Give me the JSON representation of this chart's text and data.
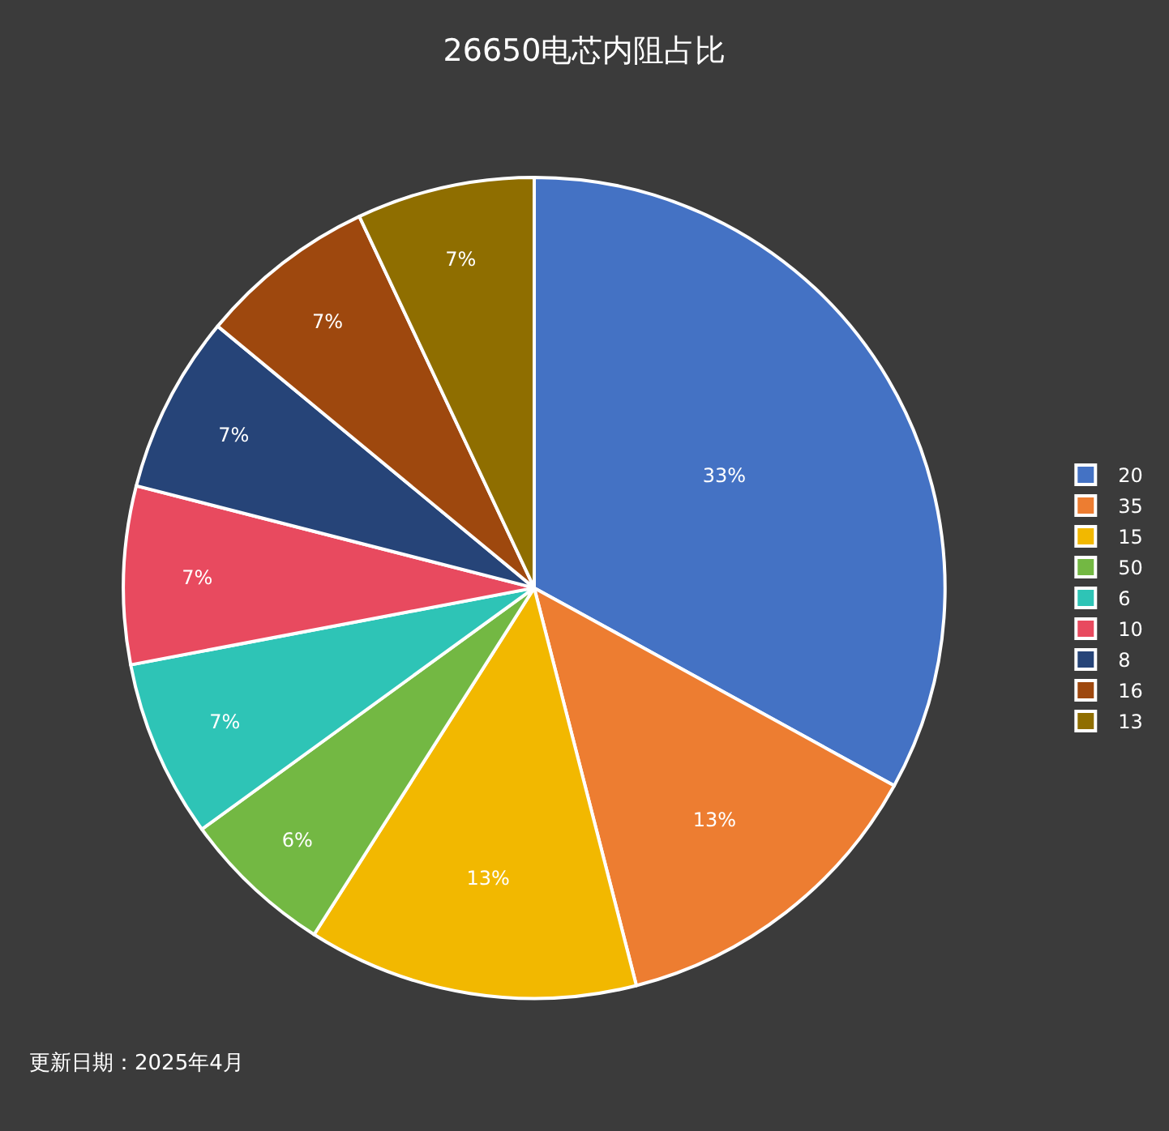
{
  "chart_data": {
    "type": "pie",
    "title": "26650电芯内阻占比",
    "categories": [
      "20",
      "35",
      "15",
      "50",
      "6",
      "10",
      "8",
      "16",
      "13"
    ],
    "values": [
      33,
      13,
      13,
      6,
      7,
      7,
      7,
      7,
      7
    ],
    "value_labels": [
      "33%",
      "13%",
      "13%",
      "6%",
      "7%",
      "7%",
      "7%",
      "7%",
      "7%"
    ],
    "colors": [
      "#4472c4",
      "#ed7d31",
      "#f2b800",
      "#73b843",
      "#2ec4b6",
      "#e84a5f",
      "#264478",
      "#9e480e",
      "#8f6e00"
    ],
    "legend": "right",
    "annotations": [
      "更新日期：2025年4月"
    ]
  }
}
